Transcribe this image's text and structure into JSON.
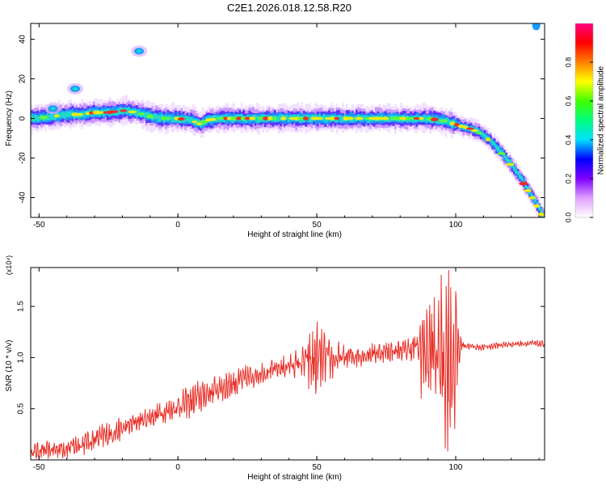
{
  "title": "C2E1.2026.018.12.58.R20",
  "chart_data": [
    {
      "type": "heatmap",
      "xlabel": "Height of straight line (km)",
      "ylabel": "Frequency (Hz)",
      "xlim": [
        -53,
        132
      ],
      "ylim": [
        -50,
        48
      ],
      "xticks": [
        -50,
        0,
        50,
        100
      ],
      "yticks": [
        -40,
        -20,
        0,
        20,
        40
      ],
      "ridge": {
        "x": [
          -52,
          -45,
          -40,
          -35,
          -30,
          -25,
          -20,
          -15,
          -10,
          -5,
          0,
          5,
          8,
          10,
          15,
          20,
          30,
          40,
          50,
          60,
          70,
          80,
          90,
          95,
          100,
          102,
          105,
          108,
          112,
          116,
          120,
          124,
          128,
          131
        ],
        "y": [
          0,
          1,
          2,
          2,
          3,
          3,
          4,
          3,
          1,
          0,
          0,
          -1,
          -3,
          -1,
          0,
          0,
          0,
          0,
          0,
          0,
          0,
          0,
          0,
          -1,
          -3,
          -4,
          -5,
          -7,
          -11,
          -17,
          -24,
          -32,
          -41,
          -49
        ]
      },
      "blobs": [
        {
          "x": -37,
          "y": 15
        },
        {
          "x": -45,
          "y": 5
        },
        {
          "x": -14,
          "y": 34
        }
      ],
      "corner_feature": {
        "x": 129,
        "y": 47
      },
      "colorbar": {
        "label": "Normalized spectral amplitude",
        "range": [
          0,
          1
        ],
        "ticks": [
          "0.0",
          "0.2",
          "0.4",
          "0.6",
          "0.8"
        ],
        "colors": [
          "#ffffff",
          "#e0a0ff",
          "#8000ff",
          "#0000ff",
          "#00e0ff",
          "#00ff80",
          "#40ff00",
          "#ffff00",
          "#ff8000",
          "#ff0000",
          "#ff0080"
        ]
      }
    },
    {
      "type": "line",
      "xlabel": "Height of straight line (km)",
      "ylabel": "SNR (10 * v/v)",
      "scale_label": "(x10⁴)",
      "xlim": [
        -53,
        132
      ],
      "ylim": [
        0,
        1.88
      ],
      "xticks": [
        -50,
        0,
        50,
        100
      ],
      "yticks": [
        "0.5",
        "1.0",
        "1.5"
      ],
      "ytick_values": [
        0.5,
        1.0,
        1.5
      ],
      "series_color": "#e8322a",
      "envelope": {
        "x": [
          -53,
          -45,
          -40,
          -35,
          -30,
          -25,
          -20,
          -15,
          -10,
          -5,
          0,
          5,
          10,
          15,
          20,
          25,
          30,
          35,
          40,
          45,
          48,
          50,
          55,
          60,
          65,
          70,
          75,
          80,
          85,
          88,
          92,
          95,
          98,
          100,
          102,
          105,
          110,
          115,
          120,
          125,
          132
        ],
        "mean": [
          0.08,
          0.1,
          0.12,
          0.15,
          0.2,
          0.25,
          0.3,
          0.37,
          0.42,
          0.47,
          0.52,
          0.58,
          0.64,
          0.7,
          0.75,
          0.8,
          0.85,
          0.88,
          0.92,
          0.95,
          0.96,
          0.97,
          0.98,
          1.0,
          1.02,
          1.04,
          1.06,
          1.07,
          1.09,
          1.08,
          1.05,
          1.0,
          1.02,
          1.05,
          1.13,
          1.11,
          1.1,
          1.12,
          1.13,
          1.14,
          1.13
        ],
        "amp": [
          0.08,
          0.08,
          0.1,
          0.1,
          0.12,
          0.12,
          0.1,
          0.1,
          0.1,
          0.1,
          0.12,
          0.15,
          0.15,
          0.15,
          0.15,
          0.12,
          0.1,
          0.1,
          0.1,
          0.15,
          0.35,
          0.35,
          0.18,
          0.12,
          0.1,
          0.1,
          0.1,
          0.1,
          0.15,
          0.45,
          0.55,
          0.8,
          0.85,
          0.7,
          0.05,
          0.03,
          0.03,
          0.03,
          0.03,
          0.03,
          0.03
        ]
      }
    }
  ]
}
